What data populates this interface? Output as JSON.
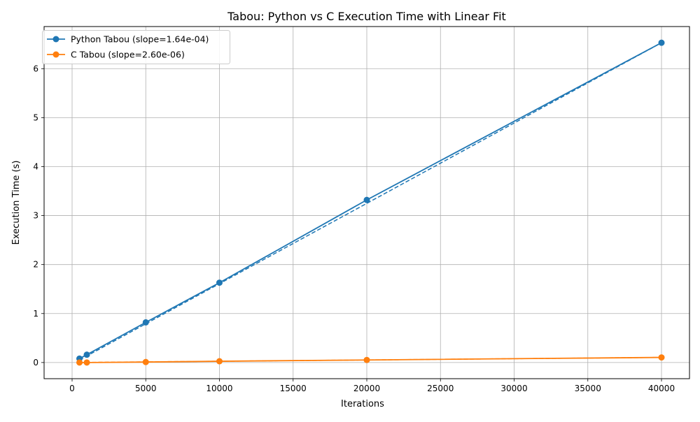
{
  "chart_data": {
    "type": "line",
    "title": "Tabou: Python vs C Execution Time with Linear Fit",
    "xlabel": "Iterations",
    "ylabel": "Execution Time (s)",
    "xlim": [
      -1900,
      41900
    ],
    "ylim": [
      -0.33,
      6.86
    ],
    "xticks": [
      0,
      5000,
      10000,
      15000,
      20000,
      25000,
      30000,
      35000,
      40000
    ],
    "yticks": [
      0,
      1,
      2,
      3,
      4,
      5,
      6
    ],
    "grid": true,
    "legend_position": "top-left",
    "series": [
      {
        "name": "Python Tabou (slope=1.64e-04)",
        "color": "#1f77b4",
        "x": [
          500,
          1000,
          5000,
          10000,
          20000,
          40000
        ],
        "y": [
          0.08,
          0.16,
          0.82,
          1.63,
          3.32,
          6.53
        ],
        "fit": {
          "slope": 0.000164,
          "intercept": -0.03
        }
      },
      {
        "name": "C Tabou (slope=2.60e-06)",
        "color": "#ff7f0e",
        "x": [
          500,
          1000,
          5000,
          10000,
          20000,
          40000
        ],
        "y": [
          0.0,
          0.0,
          0.01,
          0.026,
          0.052,
          0.104
        ],
        "fit": {
          "slope": 2.6e-06,
          "intercept": 0.0
        }
      }
    ]
  }
}
